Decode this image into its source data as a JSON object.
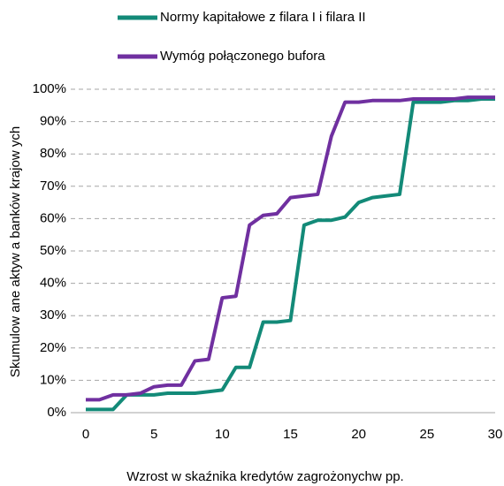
{
  "chart_data": {
    "type": "line",
    "x_label": "Wzrost w skaźnika kredytów zagrożonychw pp.",
    "y_label": "Skumulow ane aktyw a banków krajow ych",
    "x": [
      0,
      1,
      2,
      3,
      4,
      5,
      6,
      7,
      8,
      9,
      10,
      11,
      12,
      13,
      14,
      15,
      16,
      17,
      18,
      19,
      20,
      21,
      22,
      23,
      24,
      25,
      26,
      27,
      28,
      29,
      30
    ],
    "series": [
      {
        "name": "Normy kapitałowe z filara I i filara II",
        "color": "#138a78",
        "values": [
          1,
          1,
          1,
          5.5,
          5.5,
          5.5,
          6,
          6,
          6,
          6.5,
          7,
          14,
          14,
          28,
          28,
          28.5,
          58,
          59.5,
          59.5,
          60.5,
          65,
          66.5,
          67,
          67.5,
          96,
          96,
          96,
          96.5,
          96.5,
          97,
          97
        ]
      },
      {
        "name": "Wymóg połączonego bufora",
        "color": "#7030a0",
        "values": [
          4,
          4,
          5.5,
          5.5,
          6,
          8,
          8.5,
          8.5,
          16,
          16.5,
          35.5,
          36,
          58,
          61,
          61.5,
          66.5,
          67,
          67.5,
          85.5,
          96,
          96,
          96.5,
          96.5,
          96.5,
          97,
          97,
          97,
          97,
          97.5,
          97.5,
          97.5
        ]
      }
    ],
    "xlim": [
      0,
      30
    ],
    "xticks": [
      0,
      5,
      10,
      15,
      20,
      25,
      30
    ],
    "ylim": [
      0,
      100
    ],
    "yticks": [
      {
        "value": 0,
        "label": "0%"
      },
      {
        "value": 10,
        "label": "10%"
      },
      {
        "value": 20,
        "label": "20%"
      },
      {
        "value": 30,
        "label": "30%"
      },
      {
        "value": 40,
        "label": "40%"
      },
      {
        "value": 50,
        "label": "50%"
      },
      {
        "value": 60,
        "label": "60%"
      },
      {
        "value": 70,
        "label": "70%"
      },
      {
        "value": 80,
        "label": "80%"
      },
      {
        "value": 90,
        "label": "90%"
      },
      {
        "value": 100,
        "label": "100%"
      }
    ],
    "grid": true,
    "legend": "top"
  }
}
